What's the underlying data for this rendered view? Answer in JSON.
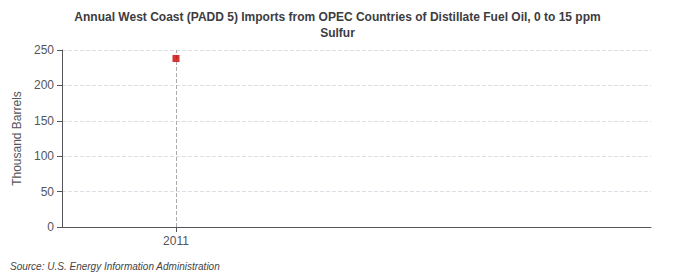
{
  "chart_data": {
    "type": "scatter",
    "title": "Annual West Coast (PADD 5) Imports from OPEC Countries of Distillate Fuel Oil, 0 to 15 ppm\nSulfur",
    "ylabel": "Thousand Barrels",
    "annotations": [
      "Source: U.S. Energy Information Administration"
    ],
    "x": [
      2011
    ],
    "values": [
      238
    ],
    "color": "#cc0000",
    "marker": "square",
    "xlim": [
      2010.4,
      2013.5
    ],
    "xticks": [
      2011
    ],
    "ylim": [
      0,
      250
    ],
    "yticks": [
      0,
      50,
      100,
      150,
      200,
      250
    ],
    "grid": true
  }
}
